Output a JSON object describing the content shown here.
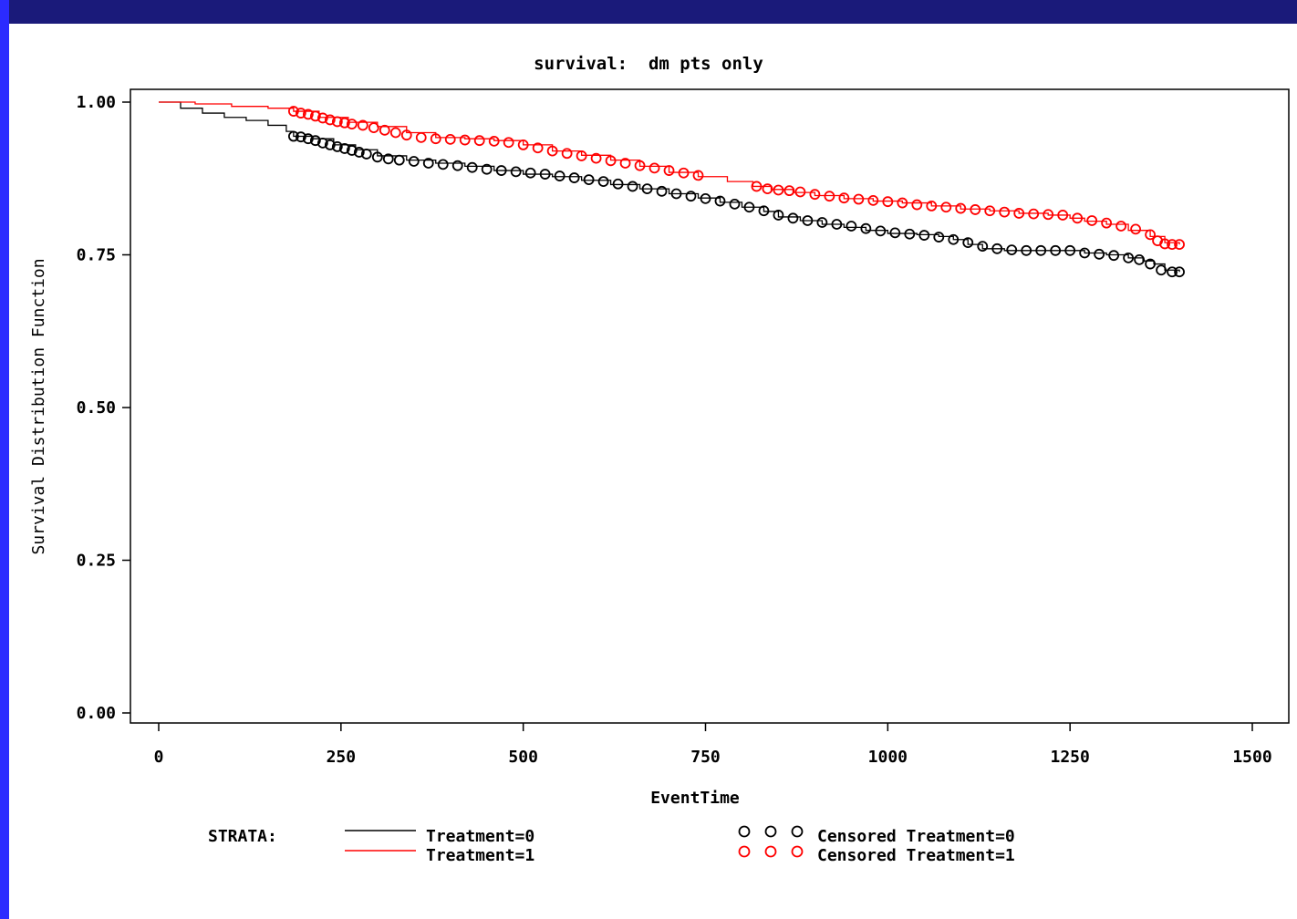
{
  "colors": {
    "frame_dark": "#1a1a7a",
    "frame_blue": "#2b2bff",
    "treatment0": "#000000",
    "treatment1": "#ff0000"
  },
  "chart_data": {
    "type": "line",
    "title": "survival:  dm pts only",
    "xlabel": "EventTime",
    "ylabel": "Survival Distribution Function",
    "xlim": [
      0,
      1500
    ],
    "ylim": [
      0.0,
      1.0
    ],
    "x_ticks": [
      0,
      250,
      500,
      750,
      1000,
      1250,
      1500
    ],
    "x_tick_labels": [
      "0",
      "250",
      "500",
      "750",
      "1000",
      "1250",
      "1500"
    ],
    "y_ticks": [
      0.0,
      0.25,
      0.5,
      0.75,
      1.0
    ],
    "y_tick_labels": [
      "0.00",
      "0.25",
      "0.50",
      "0.75",
      "1.00"
    ],
    "grid": false,
    "legend": {
      "strata_label": "STRATA:",
      "line_entries": [
        "Treatment=0",
        "Treatment=1"
      ],
      "censored_entries": [
        "Censored Treatment=0",
        "Censored Treatment=1"
      ]
    },
    "series": [
      {
        "name": "Treatment=0",
        "color": "#000000",
        "x": [
          0,
          30,
          60,
          90,
          120,
          150,
          175,
          185,
          210,
          240,
          270,
          300,
          340,
          380,
          420,
          460,
          500,
          540,
          580,
          620,
          660,
          700,
          740,
          770,
          800,
          830,
          850,
          880,
          910,
          940,
          970,
          1000,
          1040,
          1070,
          1090,
          1110,
          1130,
          1160,
          1200,
          1250,
          1270,
          1300,
          1330,
          1350,
          1365,
          1380,
          1400
        ],
        "y": [
          1.0,
          0.99,
          0.982,
          0.975,
          0.97,
          0.962,
          0.952,
          0.944,
          0.94,
          0.93,
          0.922,
          0.912,
          0.905,
          0.9,
          0.895,
          0.888,
          0.882,
          0.878,
          0.872,
          0.865,
          0.858,
          0.85,
          0.843,
          0.836,
          0.828,
          0.821,
          0.812,
          0.806,
          0.8,
          0.795,
          0.79,
          0.785,
          0.783,
          0.78,
          0.775,
          0.767,
          0.76,
          0.757,
          0.757,
          0.757,
          0.753,
          0.75,
          0.745,
          0.74,
          0.735,
          0.725,
          0.722
        ]
      },
      {
        "name": "Treatment=1",
        "color": "#ff0000",
        "x": [
          0,
          50,
          100,
          150,
          185,
          220,
          260,
          300,
          340,
          380,
          420,
          460,
          500,
          540,
          580,
          620,
          660,
          700,
          740,
          780,
          815,
          840,
          870,
          900,
          940,
          980,
          1020,
          1060,
          1100,
          1140,
          1180,
          1220,
          1250,
          1270,
          1300,
          1330,
          1360,
          1380,
          1400
        ],
        "y": [
          1.0,
          0.997,
          0.993,
          0.99,
          0.985,
          0.975,
          0.967,
          0.96,
          0.95,
          0.942,
          0.94,
          0.937,
          0.93,
          0.92,
          0.913,
          0.905,
          0.895,
          0.885,
          0.878,
          0.87,
          0.862,
          0.857,
          0.852,
          0.847,
          0.842,
          0.838,
          0.835,
          0.83,
          0.825,
          0.822,
          0.818,
          0.815,
          0.81,
          0.805,
          0.8,
          0.79,
          0.78,
          0.77,
          0.767
        ]
      }
    ],
    "censored": [
      {
        "name": "Censored Treatment=0",
        "color": "#000000",
        "x": [
          185,
          195,
          205,
          215,
          225,
          235,
          245,
          255,
          265,
          275,
          285,
          300,
          315,
          330,
          350,
          370,
          390,
          410,
          430,
          450,
          470,
          490,
          510,
          530,
          550,
          570,
          590,
          610,
          630,
          650,
          670,
          690,
          710,
          730,
          750,
          770,
          790,
          810,
          830,
          850,
          870,
          890,
          910,
          930,
          950,
          970,
          990,
          1010,
          1030,
          1050,
          1070,
          1090,
          1110,
          1130,
          1150,
          1170,
          1190,
          1210,
          1230,
          1250,
          1270,
          1290,
          1310,
          1330,
          1345,
          1360,
          1375,
          1390,
          1400
        ],
        "y": [
          0.944,
          0.943,
          0.94,
          0.937,
          0.933,
          0.93,
          0.927,
          0.924,
          0.921,
          0.918,
          0.915,
          0.91,
          0.907,
          0.905,
          0.903,
          0.9,
          0.898,
          0.896,
          0.893,
          0.89,
          0.888,
          0.886,
          0.884,
          0.882,
          0.879,
          0.876,
          0.873,
          0.87,
          0.866,
          0.862,
          0.858,
          0.854,
          0.85,
          0.846,
          0.842,
          0.838,
          0.833,
          0.828,
          0.822,
          0.815,
          0.81,
          0.806,
          0.803,
          0.8,
          0.797,
          0.793,
          0.789,
          0.786,
          0.784,
          0.782,
          0.779,
          0.775,
          0.77,
          0.764,
          0.76,
          0.758,
          0.757,
          0.757,
          0.757,
          0.757,
          0.753,
          0.751,
          0.749,
          0.745,
          0.742,
          0.735,
          0.725,
          0.722,
          0.722
        ]
      },
      {
        "name": "Censored Treatment=1",
        "color": "#ff0000",
        "x": [
          185,
          195,
          205,
          215,
          225,
          235,
          245,
          255,
          265,
          280,
          295,
          310,
          325,
          340,
          360,
          380,
          400,
          420,
          440,
          460,
          480,
          500,
          520,
          540,
          560,
          580,
          600,
          620,
          640,
          660,
          680,
          700,
          720,
          740,
          820,
          835,
          850,
          865,
          880,
          900,
          920,
          940,
          960,
          980,
          1000,
          1020,
          1040,
          1060,
          1080,
          1100,
          1120,
          1140,
          1160,
          1180,
          1200,
          1220,
          1240,
          1260,
          1280,
          1300,
          1320,
          1340,
          1360,
          1370,
          1380,
          1390,
          1400
        ],
        "y": [
          0.985,
          0.982,
          0.98,
          0.977,
          0.974,
          0.971,
          0.968,
          0.966,
          0.964,
          0.962,
          0.958,
          0.954,
          0.95,
          0.946,
          0.942,
          0.94,
          0.939,
          0.938,
          0.937,
          0.936,
          0.934,
          0.93,
          0.925,
          0.92,
          0.916,
          0.912,
          0.908,
          0.904,
          0.9,
          0.896,
          0.892,
          0.888,
          0.884,
          0.88,
          0.862,
          0.858,
          0.856,
          0.855,
          0.853,
          0.849,
          0.846,
          0.843,
          0.841,
          0.839,
          0.837,
          0.835,
          0.832,
          0.83,
          0.828,
          0.826,
          0.824,
          0.822,
          0.82,
          0.818,
          0.817,
          0.816,
          0.815,
          0.81,
          0.806,
          0.802,
          0.797,
          0.792,
          0.783,
          0.773,
          0.768,
          0.767,
          0.767
        ]
      }
    ]
  }
}
